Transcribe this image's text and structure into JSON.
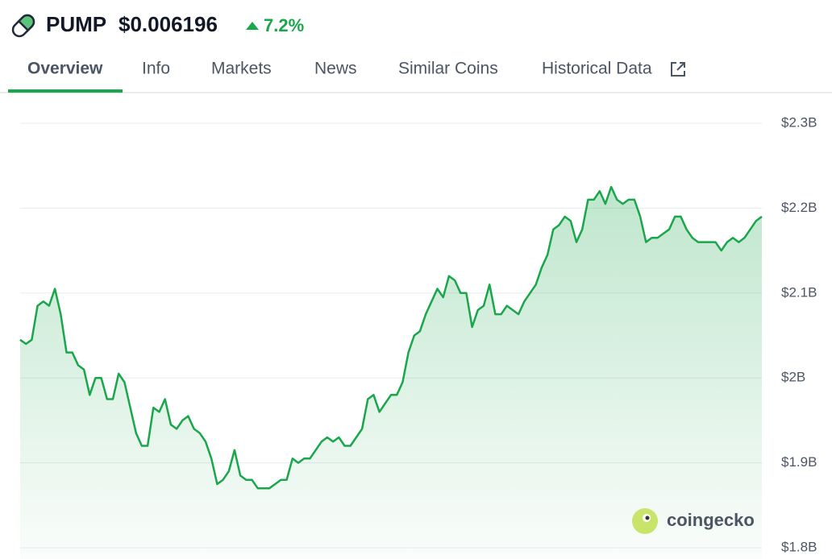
{
  "header": {
    "symbol": "PUMP",
    "price": "$0.006196",
    "change": "7.2%"
  },
  "tabs": [
    "Overview",
    "Info",
    "Markets",
    "News",
    "Similar Coins",
    "Historical Data"
  ],
  "watermark": "coingecko",
  "chart_data": {
    "type": "line",
    "color": "#1aa64b",
    "grid": true,
    "ylim": [
      1.8,
      2.3
    ],
    "yticks": [
      {
        "value": 1.8,
        "label": "$1.8B"
      },
      {
        "value": 1.9,
        "label": "$1.9B"
      },
      {
        "value": 2.0,
        "label": "$2B"
      },
      {
        "value": 2.1,
        "label": "$2.1B"
      },
      {
        "value": 2.2,
        "label": "$2.2B"
      },
      {
        "value": 2.3,
        "label": "$2.3B"
      }
    ],
    "values": [
      2.045,
      2.04,
      2.045,
      2.085,
      2.09,
      2.085,
      2.105,
      2.075,
      2.03,
      2.03,
      2.015,
      2.01,
      1.98,
      2.0,
      2.0,
      1.975,
      1.975,
      2.005,
      1.995,
      1.965,
      1.935,
      1.92,
      1.92,
      1.965,
      1.96,
      1.975,
      1.945,
      1.94,
      1.95,
      1.955,
      1.94,
      1.935,
      1.925,
      1.905,
      1.875,
      1.88,
      1.89,
      1.915,
      1.885,
      1.88,
      1.88,
      1.87,
      1.87,
      1.87,
      1.875,
      1.88,
      1.88,
      1.905,
      1.9,
      1.905,
      1.905,
      1.915,
      1.925,
      1.93,
      1.925,
      1.93,
      1.92,
      1.92,
      1.93,
      1.94,
      1.975,
      1.98,
      1.96,
      1.97,
      1.98,
      1.98,
      1.995,
      2.03,
      2.05,
      2.055,
      2.075,
      2.09,
      2.105,
      2.095,
      2.12,
      2.115,
      2.1,
      2.1,
      2.06,
      2.08,
      2.085,
      2.11,
      2.075,
      2.075,
      2.085,
      2.08,
      2.075,
      2.09,
      2.1,
      2.11,
      2.13,
      2.145,
      2.175,
      2.18,
      2.19,
      2.185,
      2.16,
      2.175,
      2.21,
      2.21,
      2.22,
      2.205,
      2.225,
      2.21,
      2.205,
      2.21,
      2.21,
      2.19,
      2.16,
      2.165,
      2.165,
      2.17,
      2.175,
      2.19,
      2.19,
      2.175,
      2.165,
      2.16,
      2.16,
      2.16,
      2.16,
      2.15,
      2.16,
      2.165,
      2.16,
      2.165,
      2.175,
      2.185,
      2.19
    ]
  }
}
